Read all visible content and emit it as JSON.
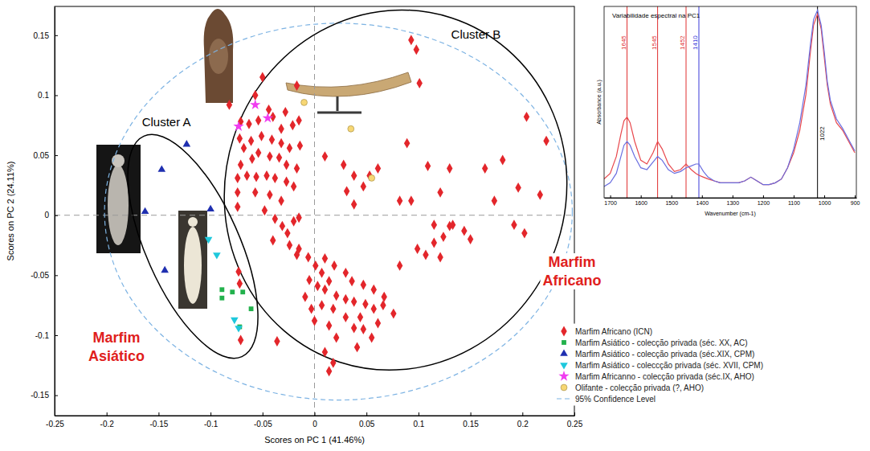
{
  "chart_data": [
    {
      "type": "scatter",
      "x_label": "Scores on PC 1 (41.46%)",
      "y_label": "Scores on PC 2 (24.11%)",
      "xlim": [
        -0.25,
        0.25
      ],
      "xticks": [
        -0.25,
        -0.2,
        -0.15,
        -0.1,
        -0.05,
        0,
        0.05,
        0.1,
        0.15,
        0.2,
        0.25
      ],
      "ylim": [
        -0.167,
        0.174
      ],
      "yticks": [
        -0.15,
        -0.1,
        -0.05,
        0,
        0.05,
        0.1,
        0.15
      ],
      "x_reference": 0,
      "y_reference": 0,
      "legend": "lower right",
      "series": [
        {
          "name": "Marfim Africano (ICN)",
          "color": "#e3262b",
          "marker": "diamond",
          "x": [
            0.093,
            0.098,
            -0.05,
            -0.057,
            -0.017,
            -0.082,
            -0.071,
            -0.063,
            -0.054,
            -0.04,
            -0.032,
            -0.021,
            -0.015,
            -0.028,
            -0.044,
            -0.072,
            -0.068,
            -0.061,
            -0.051,
            -0.041,
            -0.032,
            -0.024,
            -0.014,
            -0.071,
            -0.06,
            -0.054,
            -0.043,
            -0.034,
            -0.027,
            -0.017,
            -0.074,
            -0.065,
            -0.056,
            -0.046,
            -0.038,
            -0.027,
            -0.02,
            -0.074,
            -0.057,
            -0.043,
            -0.032,
            -0.074,
            -0.048,
            0.01,
            0.028,
            0.038,
            0.053,
            0.047,
            0.031,
            0.038,
            0.061,
            0.089,
            0.101,
            0.109,
            0.121,
            0.13,
            0.164,
            0.181,
            0.204,
            0.223,
            0.196,
            0.082,
            0.093,
            -0.038,
            -0.031,
            -0.02,
            -0.015,
            -0.026,
            -0.04,
            -0.024,
            -0.015,
            -0.006,
            0.001,
            0.007,
            0.014,
            0.01,
            0.021,
            0.03,
            0.038,
            0.049,
            0.057,
            0.066,
            0.076,
            0.044,
            0.03,
            0.018,
            0.007,
            -0.003,
            0.0,
            0.014,
            0.038,
            0.047,
            0.055,
            0.021,
            0.01,
            0.018,
            0.014,
            0.041,
            0.061,
            -0.017,
            -0.005,
            0.003,
            0.01,
            0.019,
            0.03,
            0.036,
            0.047,
            0.057,
            0.067,
            0.099,
            0.107,
            0.121,
            0.115,
            0.124,
            0.13,
            0.144,
            0.15,
            0.173,
            0.192,
            0.202,
            0.217,
            0.133,
            0.115,
            -0.036,
            -0.071,
            -0.009,
            0.082,
            -0.073,
            -0.072
          ],
          "values": [
            0.146,
            0.138,
            0.115,
            0.1,
            0.108,
            0.092,
            0.078,
            0.076,
            0.079,
            0.082,
            0.072,
            0.075,
            0.079,
            0.086,
            0.088,
            0.064,
            0.056,
            0.062,
            0.066,
            0.063,
            0.06,
            0.056,
            0.058,
            0.042,
            0.047,
            0.052,
            0.049,
            0.048,
            0.042,
            0.039,
            0.031,
            0.033,
            0.032,
            0.033,
            0.031,
            0.028,
            0.024,
            0.019,
            0.019,
            0.017,
            0.012,
            0.007,
            0.004,
            0.049,
            0.042,
            0.033,
            0.033,
            0.024,
            0.02,
            0.009,
            0.039,
            0.06,
            0.11,
            0.041,
            0.019,
            0.039,
            0.039,
            0.046,
            0.082,
            0.062,
            0.023,
            0.012,
            0.012,
            -0.003,
            -0.009,
            -0.005,
            -0.002,
            -0.015,
            -0.021,
            -0.025,
            -0.028,
            -0.035,
            -0.042,
            -0.048,
            -0.055,
            -0.062,
            -0.067,
            -0.07,
            -0.072,
            -0.074,
            -0.078,
            -0.075,
            -0.082,
            -0.085,
            -0.085,
            -0.078,
            -0.075,
            -0.078,
            -0.088,
            -0.092,
            -0.094,
            -0.095,
            -0.102,
            -0.102,
            -0.114,
            -0.123,
            -0.13,
            -0.11,
            -0.09,
            -0.033,
            -0.054,
            -0.059,
            -0.036,
            -0.042,
            -0.048,
            -0.055,
            -0.058,
            -0.062,
            -0.068,
            -0.028,
            -0.033,
            -0.035,
            -0.023,
            -0.018,
            -0.009,
            -0.013,
            -0.02,
            0.012,
            -0.008,
            -0.015,
            0.017,
            -0.008,
            -0.008,
            -0.105,
            -0.104,
            -0.068,
            -0.042,
            -0.047,
            -0.057
          ]
        },
        {
          "name": "Marfim Asiático - colecção privada (séc. XX, AC)",
          "color": "#22b14c",
          "marker": "square",
          "x": [
            -0.089,
            -0.089,
            -0.079,
            -0.069,
            -0.061,
            -0.072
          ],
          "values": [
            -0.062,
            -0.069,
            -0.064,
            -0.064,
            -0.078,
            -0.093
          ]
        },
        {
          "name": "Marfim Asiático - colecção privada (séc.XIX, CPM)",
          "color": "#1f2fb0",
          "marker": "triangle",
          "x": [
            -0.123,
            -0.147,
            -0.163,
            -0.1,
            -0.144
          ],
          "values": [
            0.059,
            0.038,
            0.003,
            0.005,
            -0.046
          ]
        },
        {
          "name": "Marfim Asiático - coleccção privada (séc. XVII, CPM)",
          "color": "#1ec8dc",
          "marker": "triangle-down",
          "x": [
            -0.102,
            -0.094,
            -0.077,
            -0.073
          ],
          "values": [
            -0.02,
            -0.033,
            -0.087,
            -0.094
          ]
        },
        {
          "name": "Marfim Africanno - colecção privada (séc.IX, AHO)",
          "color": "#f03cf0",
          "marker": "star",
          "x": [
            -0.073,
            -0.057,
            -0.045
          ],
          "values": [
            0.074,
            0.092,
            0.081
          ]
        },
        {
          "name": "Olifante - colecção privada (?, AHO)",
          "color": "#f7d774",
          "marker": "circle",
          "x": [
            -0.01,
            0.035,
            0.055
          ],
          "values": [
            0.094,
            0.072,
            0.031
          ]
        }
      ],
      "confidence_ellipse": {
        "name": "95% Confidence Level",
        "color": "#7db3e3",
        "line_style": "dashed",
        "cx": 0.023,
        "cy": 0.003,
        "rx": 0.225,
        "ry": 0.157
      },
      "clusters": [
        {
          "label": "Cluster A",
          "cx": -0.117,
          "cy": -0.026,
          "rx": 0.116,
          "ry": 0.039,
          "angle": 66
        },
        {
          "label": "Cluster B",
          "cx": 0.078,
          "cy": 0.021,
          "rx": 0.174,
          "ry": 0.142,
          "angle": -72
        }
      ],
      "annotations": [
        {
          "text": "Marfim Asiático",
          "color": "#e0201c"
        },
        {
          "text": "Marfim Africano",
          "color": "#e0201c"
        }
      ]
    },
    {
      "type": "line",
      "title": "Variabilidade espectral na PC1",
      "x_label": "Wavenumber (cm-1)",
      "y_label": "Absorbance (a.u.)",
      "xlim": [
        1720,
        895
      ],
      "xticks": [
        1700,
        1600,
        1500,
        1400,
        1300,
        1200,
        1100,
        1000,
        900
      ],
      "ylim": [
        0,
        1.02
      ],
      "tick_labels": "x",
      "x": [
        1720,
        1700,
        1680,
        1665,
        1655,
        1645,
        1635,
        1620,
        1600,
        1580,
        1560,
        1545,
        1530,
        1510,
        1490,
        1470,
        1452,
        1435,
        1420,
        1410,
        1395,
        1380,
        1360,
        1340,
        1320,
        1300,
        1280,
        1260,
        1240,
        1220,
        1200,
        1180,
        1160,
        1140,
        1120,
        1100,
        1080,
        1060,
        1045,
        1035,
        1022,
        1010,
        1000,
        990,
        980,
        960,
        940,
        920,
        900
      ],
      "series": [
        {
          "color": "#e8474c",
          "values": [
            0.1,
            0.13,
            0.22,
            0.34,
            0.41,
            0.43,
            0.4,
            0.3,
            0.2,
            0.18,
            0.24,
            0.3,
            0.26,
            0.18,
            0.14,
            0.15,
            0.18,
            0.15,
            0.13,
            0.12,
            0.11,
            0.1,
            0.09,
            0.08,
            0.08,
            0.08,
            0.08,
            0.09,
            0.11,
            0.09,
            0.07,
            0.07,
            0.08,
            0.1,
            0.16,
            0.24,
            0.36,
            0.55,
            0.78,
            0.92,
            0.98,
            0.9,
            0.75,
            0.6,
            0.5,
            0.4,
            0.36,
            0.3,
            0.24
          ]
        },
        {
          "color": "#6a6ee0",
          "values": [
            0.06,
            0.08,
            0.13,
            0.22,
            0.28,
            0.3,
            0.28,
            0.22,
            0.16,
            0.15,
            0.19,
            0.22,
            0.2,
            0.15,
            0.13,
            0.14,
            0.16,
            0.17,
            0.18,
            0.18,
            0.14,
            0.11,
            0.09,
            0.08,
            0.08,
            0.08,
            0.08,
            0.09,
            0.11,
            0.09,
            0.07,
            0.07,
            0.08,
            0.1,
            0.16,
            0.26,
            0.4,
            0.6,
            0.82,
            0.95,
            1.0,
            0.92,
            0.78,
            0.62,
            0.52,
            0.42,
            0.37,
            0.31,
            0.25
          ]
        }
      ],
      "reference_lines": [
        {
          "x": 1645,
          "color": "#e03030"
        },
        {
          "x": 1545,
          "color": "#e03030"
        },
        {
          "x": 1452,
          "color": "#e03030"
        },
        {
          "x": 1410,
          "color": "#3a3ad8"
        },
        {
          "x": 1022,
          "color": "#000000"
        }
      ]
    }
  ]
}
